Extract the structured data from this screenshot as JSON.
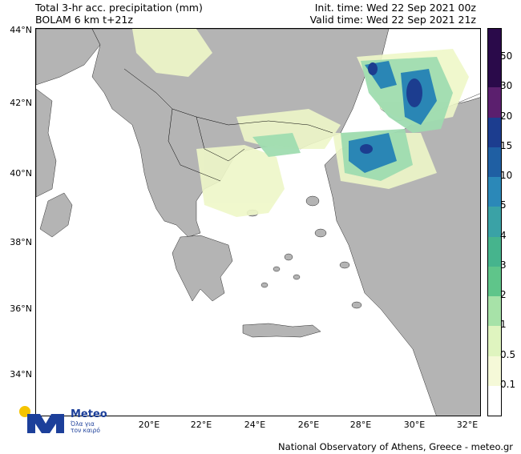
{
  "header": {
    "line1_left": "Total 3-hr acc. precipitation (mm)",
    "line2_left": "BOLAM 6 km t+21z",
    "line1_right": "Init. time: Wed 22 Sep 2021 00z",
    "line2_right": "Valid time: Wed 22 Sep 2021 21z"
  },
  "axes": {
    "latitudes": [
      "44°N",
      "42°N",
      "40°N",
      "38°N",
      "36°N",
      "34°N"
    ],
    "longitudes": [
      "20°E",
      "22°E",
      "24°E",
      "26°E",
      "28°E",
      "30°E",
      "32°E"
    ]
  },
  "legend": {
    "labels": [
      "50",
      "30",
      "20",
      "15",
      "10",
      "5",
      "4",
      "3",
      "2",
      "1",
      "0.5",
      "0.1"
    ],
    "colors": [
      "#2a0a4a",
      "#5b1f6e",
      "#1c3d8f",
      "#1f5fa3",
      "#2b88b8",
      "#3aa2a6",
      "#46b48d",
      "#5fc58a",
      "#a7e2a8",
      "#dff4bf",
      "#f5f9d8",
      "#ffffff"
    ]
  },
  "colors": {
    "land": "#b4b4b4",
    "sea": "#ffffff",
    "light_precip": "#eef7c8",
    "medium_precip": "#9fdcb0",
    "heavy_precip": "#2a86b5",
    "very_heavy": "#1c3d8f"
  },
  "footer": {
    "credit": "National Observatory of Athens, Greece - meteo.gr"
  },
  "logo": {
    "brand": "Meteo",
    "tagline": "Όλα για τον καιρό"
  }
}
